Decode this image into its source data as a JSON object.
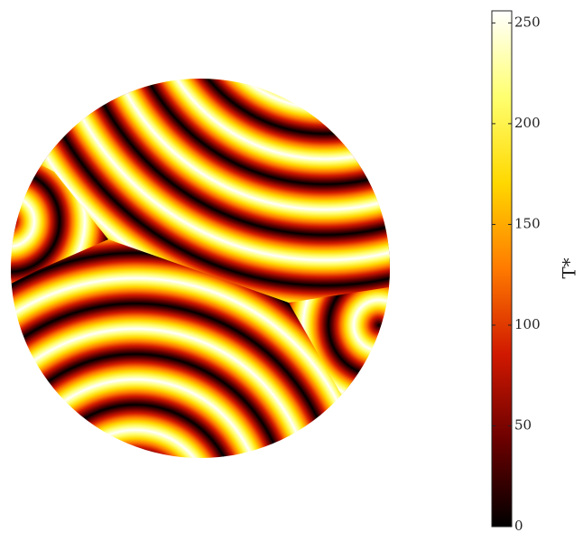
{
  "chart_data": {
    "type": "heatmap",
    "colorbar_label": "T*",
    "clim": [
      0,
      256
    ],
    "cticks": [
      0,
      50,
      100,
      150,
      200,
      250
    ],
    "colormap": [
      "#000000",
      "#6a0000",
      "#d01800",
      "#ff7a00",
      "#ffd800",
      "#ffff70",
      "#ffffff"
    ]
  }
}
